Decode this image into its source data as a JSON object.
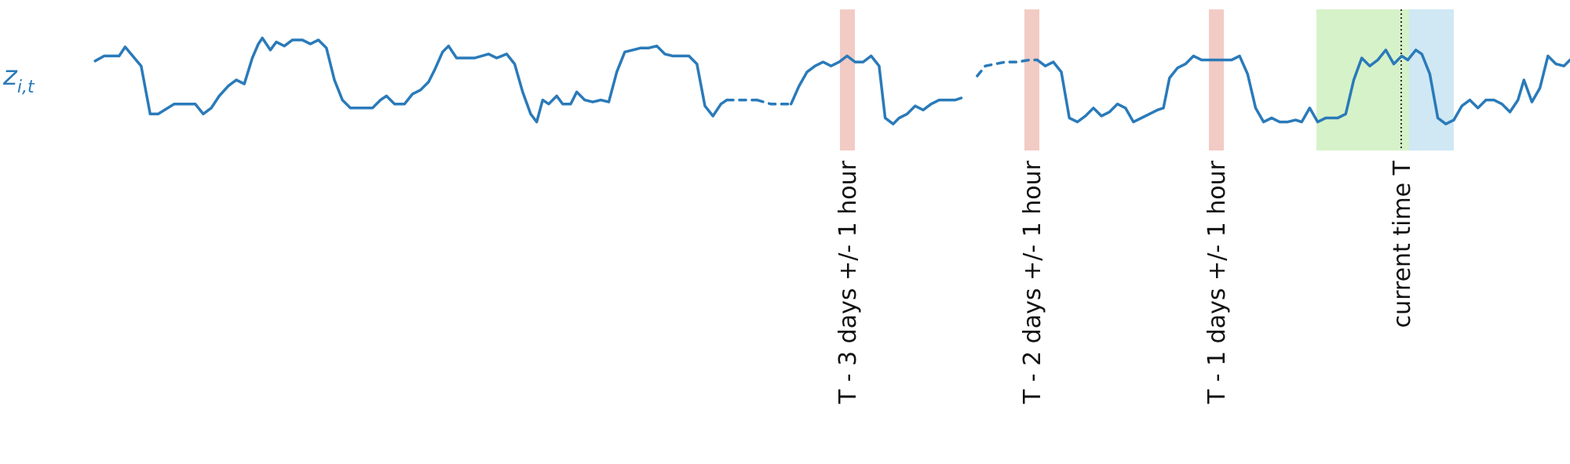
{
  "series_label": "z",
  "series_label_sub": "i,t",
  "colors": {
    "series": "#2a7ab9",
    "lag_window": "#f2cbc4",
    "context_window": "#d6f2c9",
    "forecast_window": "#cfe8f4",
    "current_marker": "#333333",
    "text": "#111111"
  },
  "windows": [
    {
      "kind": "lag",
      "label": "T - 3 days +/- 1 hour"
    },
    {
      "kind": "lag",
      "label": "T - 2 days +/- 1 hour"
    },
    {
      "kind": "lag",
      "label": "T - 1 days +/- 1 hour"
    },
    {
      "kind": "context",
      "label": ""
    },
    {
      "kind": "forecast",
      "label": ""
    }
  ],
  "current_time_label": "current time T"
}
